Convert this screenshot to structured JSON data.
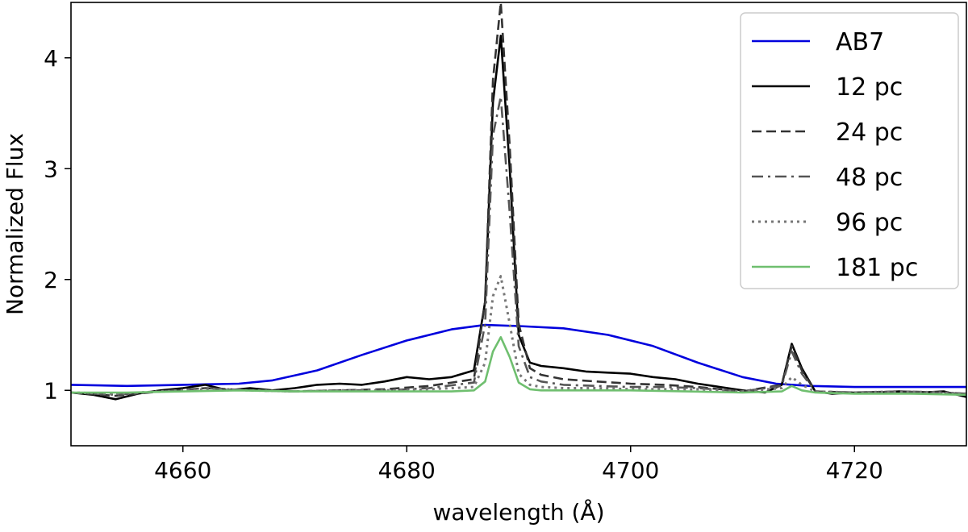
{
  "chart_data": {
    "type": "line",
    "title": "",
    "xlabel": "wavelength (Å)",
    "ylabel": "Normalized Flux",
    "xlim": [
      4650,
      4730
    ],
    "ylim": [
      0.5,
      4.5
    ],
    "xticks": [
      4660,
      4680,
      4700,
      4720
    ],
    "yticks": [
      1,
      2,
      3,
      4
    ],
    "grid": false,
    "legend_position": "top-right",
    "series": [
      {
        "name": "AB7",
        "color": "#0000dd",
        "style": "solid",
        "x": [
          4650,
          4655,
          4660,
          4665,
          4668,
          4672,
          4676,
          4680,
          4684,
          4687,
          4690,
          4694,
          4698,
          4702,
          4706,
          4710,
          4713,
          4716,
          4720,
          4725,
          4730
        ],
        "y": [
          1.05,
          1.04,
          1.05,
          1.06,
          1.09,
          1.18,
          1.32,
          1.45,
          1.55,
          1.59,
          1.58,
          1.56,
          1.5,
          1.4,
          1.25,
          1.12,
          1.06,
          1.04,
          1.03,
          1.03,
          1.03
        ]
      },
      {
        "name": "12 pc",
        "color": "#000000",
        "style": "solid",
        "x": [
          4650,
          4652,
          4654,
          4656,
          4658,
          4660,
          4662,
          4664,
          4666,
          4668,
          4670,
          4672,
          4674,
          4676,
          4678,
          4680,
          4682,
          4684,
          4686,
          4687,
          4687.7,
          4688.4,
          4689.2,
          4690,
          4691,
          4692,
          4694,
          4696,
          4698,
          4700,
          4702,
          4704,
          4706,
          4708,
          4710,
          4712,
          4713.5,
          4714.4,
          4715.3,
          4716.5,
          4718,
          4720,
          4722,
          4724,
          4726,
          4728,
          4730
        ],
        "y": [
          0.98,
          0.96,
          0.92,
          0.97,
          1.0,
          1.02,
          1.05,
          1.0,
          1.02,
          1.0,
          1.02,
          1.05,
          1.06,
          1.05,
          1.08,
          1.12,
          1.1,
          1.12,
          1.18,
          1.8,
          3.6,
          4.2,
          3.0,
          1.5,
          1.25,
          1.22,
          1.2,
          1.17,
          1.16,
          1.15,
          1.12,
          1.1,
          1.06,
          1.03,
          1.0,
          0.98,
          1.05,
          1.42,
          1.2,
          0.99,
          0.97,
          0.98,
          0.98,
          0.99,
          0.98,
          0.99,
          0.94
        ]
      },
      {
        "name": "24 pc",
        "color": "#333333",
        "style": "dashed",
        "x": [
          4650,
          4654,
          4658,
          4662,
          4666,
          4670,
          4674,
          4678,
          4682,
          4686,
          4687,
          4687.7,
          4688.4,
          4689.2,
          4690,
          4691,
          4692,
          4694,
          4697,
          4700,
          4703,
          4706,
          4710,
          4713.5,
          4714.4,
          4715.3,
          4716.5,
          4720,
          4724,
          4728,
          4730
        ],
        "y": [
          0.98,
          0.95,
          0.99,
          1.02,
          1.0,
          0.99,
          1.0,
          1.01,
          1.04,
          1.1,
          1.8,
          3.8,
          4.5,
          3.2,
          1.6,
          1.2,
          1.14,
          1.1,
          1.08,
          1.06,
          1.05,
          1.03,
          0.99,
          1.05,
          1.4,
          1.18,
          0.99,
          0.98,
          0.99,
          0.98,
          0.96
        ]
      },
      {
        "name": "48 pc",
        "color": "#555555",
        "style": "dashdot",
        "x": [
          4650,
          4654,
          4658,
          4662,
          4666,
          4670,
          4674,
          4678,
          4682,
          4686,
          4687,
          4687.7,
          4688.4,
          4689.2,
          4690,
          4691,
          4692,
          4694,
          4697,
          4700,
          4703,
          4706,
          4710,
          4713.5,
          4714.4,
          4715.3,
          4716.5,
          4720,
          4724,
          4728,
          4730
        ],
        "y": [
          0.98,
          0.96,
          0.99,
          1.02,
          1.0,
          0.99,
          1.0,
          1.0,
          1.02,
          1.07,
          1.6,
          3.3,
          3.65,
          2.6,
          1.4,
          1.12,
          1.08,
          1.05,
          1.04,
          1.03,
          1.03,
          1.02,
          0.99,
          1.04,
          1.35,
          1.15,
          0.99,
          0.98,
          0.99,
          0.98,
          0.97
        ]
      },
      {
        "name": "96 pc",
        "color": "#777777",
        "style": "dotted",
        "x": [
          4650,
          4654,
          4658,
          4662,
          4666,
          4670,
          4674,
          4678,
          4682,
          4686,
          4687,
          4687.7,
          4688.4,
          4689.2,
          4690,
          4691,
          4692,
          4694,
          4697,
          4700,
          4703,
          4706,
          4710,
          4713.5,
          4714.4,
          4715.3,
          4716.5,
          4720,
          4724,
          4728,
          4730
        ],
        "y": [
          0.98,
          0.97,
          0.99,
          1.01,
          1.0,
          0.99,
          1.0,
          1.0,
          1.01,
          1.03,
          1.25,
          1.85,
          2.03,
          1.6,
          1.15,
          1.05,
          1.03,
          1.02,
          1.02,
          1.01,
          1.01,
          1.01,
          0.99,
          1.02,
          1.12,
          1.05,
          0.99,
          0.98,
          0.99,
          0.98,
          0.97
        ]
      },
      {
        "name": "181 pc",
        "color": "#6fbf6f",
        "style": "solid",
        "x": [
          4650,
          4655,
          4660,
          4665,
          4670,
          4675,
          4680,
          4684,
          4686,
          4687,
          4687.7,
          4688.4,
          4689.2,
          4690,
          4691,
          4692,
          4696,
          4700,
          4705,
          4710,
          4713.5,
          4714.4,
          4715.3,
          4716.5,
          4720,
          4725,
          4730
        ],
        "y": [
          0.98,
          0.98,
          0.99,
          1.0,
          0.99,
          0.99,
          0.99,
          0.99,
          1.0,
          1.08,
          1.35,
          1.48,
          1.3,
          1.07,
          1.01,
          1.0,
          1.0,
          1.0,
          0.99,
          0.98,
          0.99,
          1.04,
          1.0,
          0.98,
          0.97,
          0.97,
          0.96
        ]
      }
    ]
  }
}
